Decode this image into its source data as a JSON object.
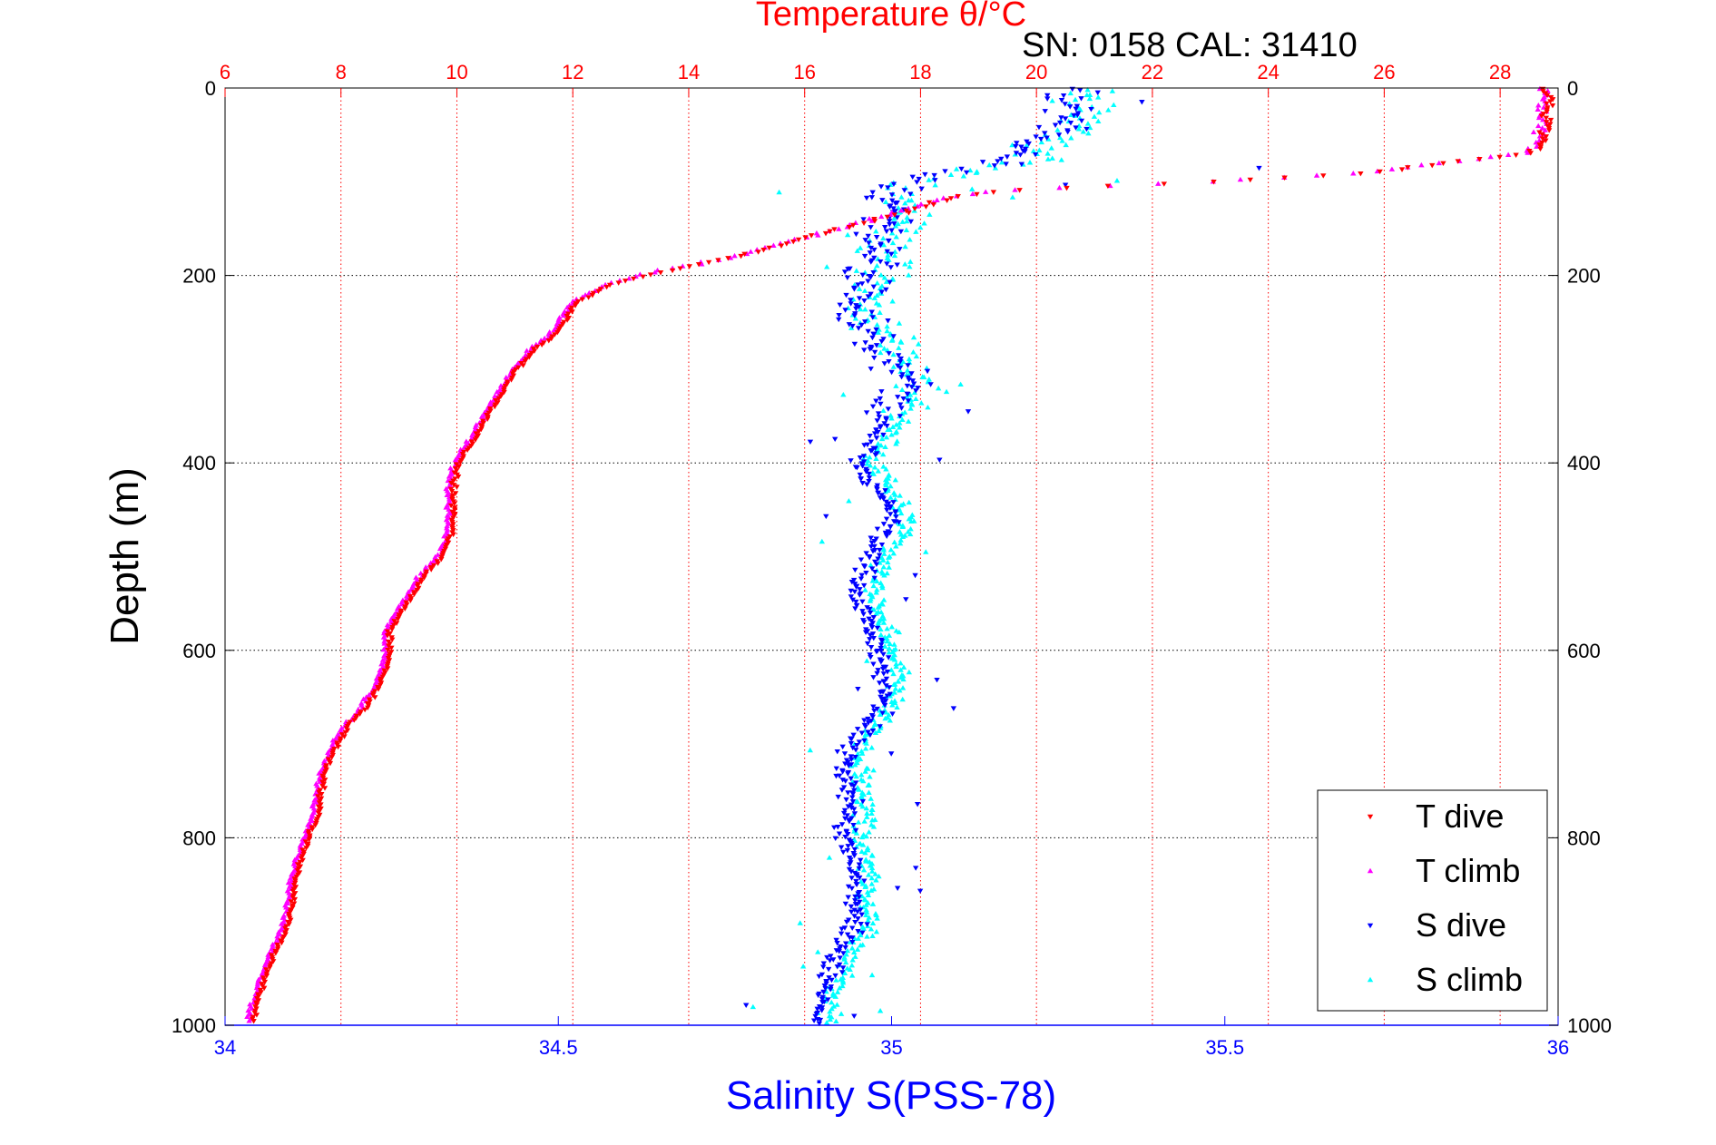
{
  "chart_data": {
    "type": "scatter",
    "title": "Temperature θ/°C",
    "annotation": "SN: 0158   CAL: 31410",
    "xlabel": "Salinity S(PSS-78)",
    "ylabel": "Depth (m)",
    "x_bottom": {
      "label": "Salinity S(PSS-78)",
      "lim": [
        34,
        36
      ],
      "ticks": [
        "34",
        "34.5",
        "35",
        "35.5",
        "36"
      ],
      "color": "#0000ff"
    },
    "x_top": {
      "label": "Temperature θ/°C",
      "lim": [
        6,
        29
      ],
      "ticks": [
        "6",
        "8",
        "10",
        "12",
        "14",
        "16",
        "18",
        "20",
        "22",
        "24",
        "26",
        "28"
      ],
      "color": "#ff0000"
    },
    "y": {
      "label": "Depth (m)",
      "lim": [
        0,
        1000
      ],
      "reversed": true,
      "ticks": [
        "0",
        "200",
        "400",
        "600",
        "800",
        "1000"
      ]
    },
    "grid": "on",
    "legend": "bottom-right",
    "temperature_profile": {
      "depth": [
        0,
        20,
        40,
        60,
        70,
        80,
        90,
        95,
        100,
        105,
        110,
        115,
        120,
        130,
        140,
        150,
        160,
        170,
        180,
        190,
        200,
        210,
        220,
        230,
        240,
        260,
        280,
        300,
        320,
        340,
        360,
        380,
        400,
        420,
        440,
        460,
        480,
        500,
        520,
        540,
        560,
        580,
        600,
        620,
        640,
        660,
        680,
        700,
        720,
        740,
        760,
        780,
        800,
        820,
        840,
        860,
        880,
        900,
        920,
        940,
        960,
        980,
        995
      ],
      "temp": [
        28.8,
        28.8,
        28.75,
        28.7,
        28.4,
        27.0,
        25.8,
        24.5,
        23.0,
        21.0,
        19.3,
        18.7,
        18.3,
        17.8,
        17.2,
        16.6,
        16.0,
        15.4,
        14.8,
        14.0,
        13.2,
        12.6,
        12.3,
        12.0,
        11.9,
        11.7,
        11.3,
        11.0,
        10.8,
        10.6,
        10.4,
        10.2,
        10.0,
        9.9,
        9.9,
        9.9,
        9.85,
        9.7,
        9.4,
        9.2,
        9.0,
        8.8,
        8.8,
        8.75,
        8.6,
        8.4,
        8.1,
        7.9,
        7.75,
        7.65,
        7.6,
        7.55,
        7.4,
        7.3,
        7.2,
        7.15,
        7.1,
        7.0,
        6.85,
        6.7,
        6.6,
        6.5,
        6.45
      ]
    },
    "salinity_profile": {
      "depth": [
        0,
        20,
        40,
        60,
        80,
        90,
        95,
        100,
        110,
        120,
        140,
        160,
        180,
        200,
        220,
        240,
        260,
        280,
        300,
        320,
        340,
        360,
        380,
        400,
        420,
        440,
        460,
        480,
        500,
        520,
        540,
        560,
        580,
        600,
        620,
        640,
        660,
        680,
        700,
        720,
        740,
        760,
        780,
        800,
        820,
        840,
        860,
        880,
        900,
        920,
        940,
        960,
        980,
        995
      ],
      "sal": [
        35.28,
        35.28,
        35.28,
        35.22,
        35.18,
        35.12,
        35.05,
        35.02,
        35.01,
        35.01,
        35.01,
        35.0,
        34.98,
        34.97,
        34.96,
        34.96,
        34.98,
        35.0,
        35.02,
        35.03,
        35.02,
        35.0,
        34.98,
        34.96,
        34.98,
        35.0,
        35.01,
        35.0,
        34.98,
        34.97,
        34.96,
        34.97,
        34.98,
        34.99,
        35.0,
        35.0,
        34.99,
        34.97,
        34.95,
        34.94,
        34.94,
        34.95,
        34.95,
        34.94,
        34.95,
        34.96,
        34.95,
        34.96,
        34.95,
        34.93,
        34.92,
        34.91,
        34.9,
        34.9
      ]
    },
    "series": [
      {
        "name": "T dive",
        "variable": "temperature",
        "color": "#ff0000",
        "marker": "triangle-down"
      },
      {
        "name": "T climb",
        "variable": "temperature",
        "color": "#ff00ff",
        "marker": "triangle-up"
      },
      {
        "name": "S dive",
        "variable": "salinity",
        "color": "#0000ff",
        "marker": "triangle-down"
      },
      {
        "name": "S climb",
        "variable": "salinity",
        "color": "#00ffff",
        "marker": "triangle-up"
      }
    ]
  }
}
